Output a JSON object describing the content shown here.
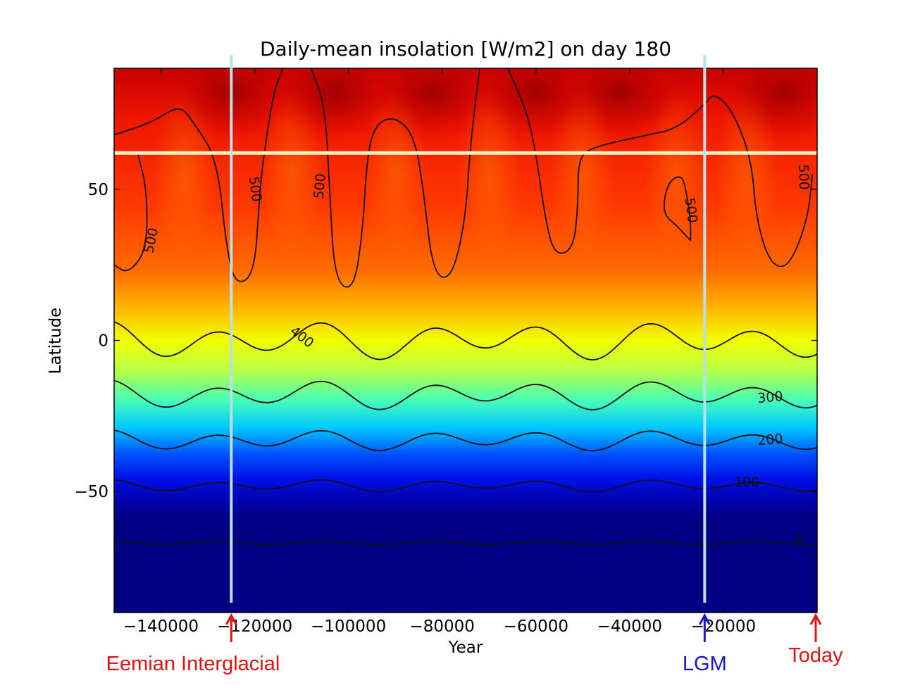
{
  "chart_data": {
    "type": "heatmap",
    "title": "Daily-mean insolation [W/m2] on day 180",
    "xlabel": "Year",
    "ylabel": "Latitude",
    "xlim": [
      -150000,
      0
    ],
    "ylim": [
      -90,
      90
    ],
    "xticks": [
      {
        "value": -140000,
        "label": "−140000"
      },
      {
        "value": -120000,
        "label": "−120000"
      },
      {
        "value": -100000,
        "label": "−100000"
      },
      {
        "value": -80000,
        "label": "−80000"
      },
      {
        "value": -60000,
        "label": "−60000"
      },
      {
        "value": -40000,
        "label": "−40000"
      },
      {
        "value": -20000,
        "label": "−20000"
      }
    ],
    "yticks": [
      {
        "value": 50,
        "label": "50"
      },
      {
        "value": 0,
        "label": "0"
      },
      {
        "value": -50,
        "label": "−50"
      }
    ],
    "colormap": "jet",
    "color_range": [
      0,
      550
    ],
    "contour_levels": [
      0,
      100,
      200,
      300,
      400,
      500
    ],
    "contour_labels": [
      {
        "text": "500",
        "x": -142000,
        "y": 33,
        "rotate": -78
      },
      {
        "text": "500",
        "x": -120000,
        "y": 50,
        "rotate": 82
      },
      {
        "text": "500",
        "x": -106000,
        "y": 51,
        "rotate": -85
      },
      {
        "text": "400",
        "x": -110000,
        "y": 1,
        "rotate": 38
      },
      {
        "text": "500",
        "x": -27000,
        "y": 43,
        "rotate": 82
      },
      {
        "text": "500",
        "x": -3000,
        "y": 54,
        "rotate": 88
      },
      {
        "text": "300",
        "x": -10000,
        "y": -19,
        "rotate": -5
      },
      {
        "text": "200",
        "x": -10000,
        "y": -33,
        "rotate": -5
      },
      {
        "text": "100",
        "x": -15000,
        "y": -47,
        "rotate": 0
      },
      {
        "text": "0",
        "x": -4000,
        "y": -66,
        "rotate": 0
      }
    ],
    "reference_lines": [
      {
        "orientation": "horizontal",
        "y": 62,
        "color": "#f6f0c0"
      },
      {
        "orientation": "vertical",
        "x": -125000,
        "color": "#b9e0ea"
      },
      {
        "orientation": "vertical",
        "x": -24000,
        "color": "#b9e0ea"
      }
    ],
    "annotations": [
      {
        "text": "Eemian Interglacial",
        "x": -125000,
        "color": "#e21313"
      },
      {
        "text": "LGM",
        "x": -24000,
        "color": "#1616d4"
      },
      {
        "text": "Today",
        "x": 0,
        "color": "#e21313"
      }
    ]
  }
}
